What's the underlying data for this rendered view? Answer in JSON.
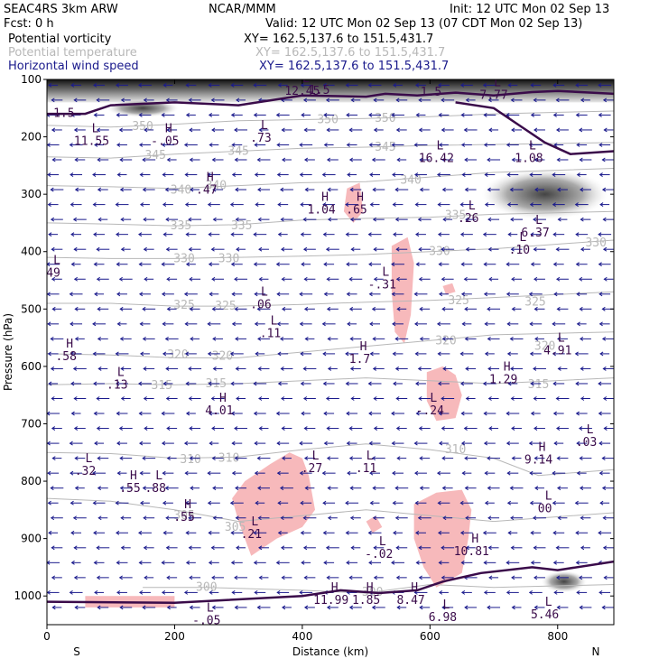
{
  "header": {
    "model": "SEAC4RS   3km ARW",
    "source": "NCAR/MMM",
    "init": "Init: 12 UTC Mon 02 Sep 13",
    "fcst": "Fcst:    0 h",
    "valid": "Valid: 12 UTC Mon 02 Sep 13 (07 CDT Mon 02 Sep 13)",
    "fields": [
      {
        "name": "Potential vorticity",
        "xy": "XY= 162.5,137.6 to 151.5,431.7",
        "color": "#000000"
      },
      {
        "name": "Potential temperature",
        "xy": "XY= 162.5,137.6 to 151.5,431.7",
        "color": "#b8b8b8"
      },
      {
        "name": "Horizontal wind speed",
        "xy": "XY= 162.5,137.6 to 151.5,431.7",
        "color": "#1a1a8c"
      }
    ]
  },
  "chart_data": {
    "type": "cross-section",
    "xlabel": "Distance (km)",
    "ylabel": "Pressure (hPa)",
    "xlim": [
      0,
      888
    ],
    "ylim": [
      1050,
      100
    ],
    "x_ticks": [
      0,
      200,
      400,
      600,
      800
    ],
    "y_ticks": [
      100,
      200,
      300,
      400,
      500,
      600,
      700,
      800,
      900,
      1000
    ],
    "x_end_labels": {
      "left": "S",
      "right": "N"
    },
    "theta_contours": [
      {
        "label": "350",
        "points": [
          [
            0,
            180
          ],
          [
            100,
            183
          ],
          [
            200,
            178
          ],
          [
            300,
            172
          ],
          [
            400,
            170
          ],
          [
            500,
            168
          ],
          [
            600,
            165
          ],
          [
            700,
            160
          ],
          [
            888,
            155
          ]
        ],
        "label_at": [
          [
            150,
            182
          ],
          [
            440,
            170
          ],
          [
            530,
            168
          ]
        ]
      },
      {
        "label": "345",
        "points": [
          [
            0,
            235
          ],
          [
            100,
            237
          ],
          [
            200,
            230
          ],
          [
            300,
            225
          ],
          [
            400,
            220
          ],
          [
            500,
            218
          ],
          [
            600,
            215
          ],
          [
            888,
            210
          ]
        ],
        "label_at": [
          [
            170,
            232
          ],
          [
            300,
            225
          ],
          [
            530,
            218
          ]
        ]
      },
      {
        "label": "340",
        "points": [
          [
            0,
            285
          ],
          [
            100,
            287
          ],
          [
            200,
            290
          ],
          [
            300,
            285
          ],
          [
            400,
            280
          ],
          [
            500,
            278
          ],
          [
            600,
            270
          ],
          [
            700,
            262
          ],
          [
            888,
            255
          ]
        ],
        "label_at": [
          [
            210,
            293
          ],
          [
            265,
            285
          ],
          [
            570,
            275
          ]
        ]
      },
      {
        "label": "335",
        "points": [
          [
            0,
            350
          ],
          [
            100,
            352
          ],
          [
            200,
            355
          ],
          [
            300,
            353
          ],
          [
            400,
            345
          ],
          [
            500,
            342
          ],
          [
            600,
            340
          ],
          [
            700,
            335
          ],
          [
            888,
            330
          ]
        ],
        "label_at": [
          [
            210,
            355
          ],
          [
            305,
            355
          ],
          [
            640,
            337
          ]
        ]
      },
      {
        "label": "330",
        "points": [
          [
            0,
            410
          ],
          [
            100,
            412
          ],
          [
            200,
            412
          ],
          [
            300,
            410
          ],
          [
            400,
            408
          ],
          [
            500,
            405
          ],
          [
            600,
            400
          ],
          [
            700,
            395
          ],
          [
            888,
            380
          ]
        ],
        "label_at": [
          [
            215,
            412
          ],
          [
            285,
            412
          ],
          [
            615,
            400
          ],
          [
            860,
            385
          ]
        ]
      },
      {
        "label": "325",
        "points": [
          [
            0,
            490
          ],
          [
            100,
            490
          ],
          [
            200,
            495
          ],
          [
            300,
            495
          ],
          [
            400,
            492
          ],
          [
            500,
            488
          ],
          [
            600,
            485
          ],
          [
            700,
            480
          ],
          [
            888,
            470
          ]
        ],
        "label_at": [
          [
            215,
            493
          ],
          [
            280,
            495
          ],
          [
            645,
            485
          ],
          [
            765,
            488
          ]
        ]
      },
      {
        "label": "320",
        "points": [
          [
            0,
            578
          ],
          [
            100,
            580
          ],
          [
            200,
            585
          ],
          [
            300,
            585
          ],
          [
            400,
            575
          ],
          [
            500,
            565
          ],
          [
            600,
            555
          ],
          [
            700,
            545
          ],
          [
            888,
            540
          ]
        ],
        "label_at": [
          [
            205,
            580
          ],
          [
            275,
            582
          ],
          [
            625,
            555
          ],
          [
            780,
            565
          ]
        ]
      },
      {
        "label": "315",
        "points": [
          [
            0,
            632
          ],
          [
            100,
            630
          ],
          [
            200,
            632
          ],
          [
            300,
            630
          ],
          [
            400,
            625
          ],
          [
            500,
            620
          ],
          [
            600,
            625
          ],
          [
            700,
            630
          ],
          [
            888,
            620
          ]
        ],
        "label_at": [
          [
            180,
            633
          ],
          [
            265,
            630
          ],
          [
            770,
            632
          ]
        ]
      },
      {
        "label": "310",
        "points": [
          [
            0,
            750
          ],
          [
            100,
            752
          ],
          [
            200,
            760
          ],
          [
            300,
            758
          ],
          [
            400,
            745
          ],
          [
            500,
            735
          ],
          [
            600,
            745
          ],
          [
            700,
            760
          ],
          [
            770,
            790
          ],
          [
            888,
            780
          ]
        ],
        "label_at": [
          [
            225,
            762
          ],
          [
            285,
            760
          ],
          [
            640,
            745
          ]
        ]
      },
      {
        "label": "305",
        "points": [
          [
            0,
            830
          ],
          [
            100,
            835
          ],
          [
            200,
            850
          ],
          [
            300,
            870
          ],
          [
            400,
            860
          ],
          [
            500,
            850
          ],
          [
            600,
            860
          ],
          [
            700,
            870
          ],
          [
            888,
            855
          ]
        ],
        "label_at": [
          [
            215,
            860
          ],
          [
            295,
            880
          ]
        ]
      },
      {
        "label": "300",
        "points": [
          [
            150,
            985
          ],
          [
            250,
            985
          ],
          [
            400,
            990
          ],
          [
            500,
            995
          ],
          [
            600,
            980
          ],
          [
            700,
            985
          ],
          [
            888,
            980
          ]
        ],
        "label_at": [
          [
            250,
            985
          ],
          [
            510,
            993
          ]
        ]
      }
    ],
    "pv_contours": [
      {
        "label": "1.5",
        "points": [
          [
            0,
            160
          ],
          [
            60,
            160
          ],
          [
            100,
            145
          ],
          [
            200,
            140
          ],
          [
            300,
            145
          ],
          [
            400,
            128
          ],
          [
            500,
            130
          ],
          [
            530,
            125
          ],
          [
            580,
            128
          ],
          [
            640,
            123
          ],
          [
            700,
            128
          ],
          [
            760,
            122
          ],
          [
            800,
            120
          ],
          [
            888,
            125
          ]
        ]
      },
      {
        "label": "1.5",
        "points": [
          [
            640,
            140
          ],
          [
            700,
            150
          ],
          [
            740,
            180
          ],
          [
            780,
            210
          ],
          [
            820,
            230
          ],
          [
            888,
            225
          ]
        ]
      },
      {
        "label": "1.5",
        "points": [
          [
            0,
            1010
          ],
          [
            200,
            1012
          ],
          [
            400,
            1000
          ],
          [
            460,
            990
          ],
          [
            520,
            995
          ],
          [
            580,
            990
          ],
          [
            620,
            975
          ],
          [
            680,
            960
          ],
          [
            760,
            950
          ],
          [
            800,
            955
          ],
          [
            888,
            940
          ]
        ]
      }
    ],
    "pv_high_regions": [
      {
        "points": [
          [
            60,
            1000
          ],
          [
            200,
            1000
          ],
          [
            200,
            1020
          ],
          [
            60,
            1020
          ]
        ]
      },
      {
        "points": [
          [
            320,
            930
          ],
          [
            360,
            900
          ],
          [
            400,
            880
          ],
          [
            420,
            850
          ],
          [
            410,
            790
          ],
          [
            400,
            760
          ],
          [
            380,
            750
          ],
          [
            350,
            770
          ],
          [
            310,
            800
          ],
          [
            290,
            830
          ],
          [
            300,
            870
          ]
        ]
      },
      {
        "points": [
          [
            470,
            290
          ],
          [
            490,
            280
          ],
          [
            495,
            330
          ],
          [
            480,
            350
          ],
          [
            465,
            330
          ]
        ]
      },
      {
        "points": [
          [
            540,
            390
          ],
          [
            565,
            375
          ],
          [
            575,
            420
          ],
          [
            570,
            510
          ],
          [
            560,
            560
          ],
          [
            545,
            540
          ],
          [
            540,
            470
          ]
        ]
      },
      {
        "points": [
          [
            595,
            610
          ],
          [
            620,
            600
          ],
          [
            640,
            615
          ],
          [
            650,
            650
          ],
          [
            640,
            690
          ],
          [
            610,
            695
          ],
          [
            595,
            660
          ]
        ]
      },
      {
        "points": [
          [
            575,
            840
          ],
          [
            610,
            820
          ],
          [
            650,
            815
          ],
          [
            665,
            850
          ],
          [
            660,
            900
          ],
          [
            650,
            960
          ],
          [
            610,
            985
          ],
          [
            590,
            950
          ],
          [
            575,
            900
          ]
        ]
      },
      {
        "points": [
          [
            500,
            870
          ],
          [
            515,
            860
          ],
          [
            525,
            880
          ],
          [
            510,
            890
          ]
        ]
      },
      {
        "points": [
          [
            620,
            460
          ],
          [
            635,
            455
          ],
          [
            640,
            470
          ],
          [
            625,
            475
          ]
        ]
      }
    ],
    "pv_extrema": [
      {
        "kind": "L",
        "value": "11.55",
        "x": 70,
        "y": 195
      },
      {
        "kind": "H",
        "value": "-.05",
        "x": 185,
        "y": 195
      },
      {
        "kind": "L",
        "value": ".73",
        "x": 335,
        "y": 190
      },
      {
        "kind": "H",
        "value": ".47",
        "x": 250,
        "y": 280
      },
      {
        "kind": "H",
        "value": "1.04",
        "x": 430,
        "y": 315
      },
      {
        "kind": "H",
        "value": ".65",
        "x": 485,
        "y": 315
      },
      {
        "kind": "L",
        "value": ".26",
        "x": 660,
        "y": 330
      },
      {
        "kind": "L",
        "value": "6.37",
        "x": 765,
        "y": 355
      },
      {
        "kind": "L",
        "value": ".10",
        "x": 740,
        "y": 385
      },
      {
        "kind": "L",
        "value": "12.45",
        "x": 400,
        "y": 108
      },
      {
        "kind": "L",
        "value": "7.77",
        "x": 700,
        "y": 115
      },
      {
        "kind": "L",
        "value": "16.42",
        "x": 610,
        "y": 225
      },
      {
        "kind": "L",
        "value": "1.08",
        "x": 755,
        "y": 225
      },
      {
        "kind": "L",
        "value": "49",
        "x": 10,
        "y": 425
      },
      {
        "kind": "L",
        "value": "-.31",
        "x": 525,
        "y": 445
      },
      {
        "kind": "L",
        "value": ".06",
        "x": 335,
        "y": 480
      },
      {
        "kind": "L",
        "value": ".11",
        "x": 350,
        "y": 530
      },
      {
        "kind": "H",
        "value": "1.7",
        "x": 490,
        "y": 575
      },
      {
        "kind": "H",
        "value": ".58",
        "x": 30,
        "y": 570
      },
      {
        "kind": "L",
        "value": ".13",
        "x": 110,
        "y": 620
      },
      {
        "kind": "H",
        "value": "4.01",
        "x": 270,
        "y": 665
      },
      {
        "kind": "H",
        "value": "1.29",
        "x": 715,
        "y": 610
      },
      {
        "kind": "L",
        "value": "4.91",
        "x": 800,
        "y": 560
      },
      {
        "kind": "L",
        "value": "-.24",
        "x": 600,
        "y": 665
      },
      {
        "kind": "L",
        "value": ".03",
        "x": 845,
        "y": 720
      },
      {
        "kind": "H",
        "value": "9.14",
        "x": 770,
        "y": 750
      },
      {
        "kind": "L",
        "value": ".32",
        "x": 60,
        "y": 770
      },
      {
        "kind": "L",
        "value": ".27",
        "x": 415,
        "y": 765
      },
      {
        "kind": "L",
        "value": ".11",
        "x": 500,
        "y": 765
      },
      {
        "kind": "H",
        "value": ".55",
        "x": 130,
        "y": 800
      },
      {
        "kind": "L",
        "value": ".88",
        "x": 170,
        "y": 800
      },
      {
        "kind": "H",
        "value": ".55",
        "x": 215,
        "y": 850
      },
      {
        "kind": "L",
        "value": "00",
        "x": 780,
        "y": 835
      },
      {
        "kind": "L",
        "value": ".21",
        "x": 320,
        "y": 880
      },
      {
        "kind": "L",
        "value": "-.02",
        "x": 520,
        "y": 915
      },
      {
        "kind": "H",
        "value": "10.81",
        "x": 665,
        "y": 910
      },
      {
        "kind": "H",
        "value": "11.99",
        "x": 445,
        "y": 995
      },
      {
        "kind": "H",
        "value": "1.85",
        "x": 500,
        "y": 995
      },
      {
        "kind": "H",
        "value": "8.47",
        "x": 570,
        "y": 995
      },
      {
        "kind": "L",
        "value": "-.05",
        "x": 250,
        "y": 1030
      },
      {
        "kind": "L",
        "value": "6.98",
        "x": 620,
        "y": 1025
      },
      {
        "kind": "L",
        "value": "5.46",
        "x": 780,
        "y": 1020
      }
    ],
    "colors": {
      "pv_contour": "#3a0b4a",
      "pv_shade": "#f7b9bb",
      "theta": "#b8b8b8",
      "wind": "#1a1a8c",
      "label_purple": "#3a0b4a",
      "axis": "#000000"
    }
  }
}
